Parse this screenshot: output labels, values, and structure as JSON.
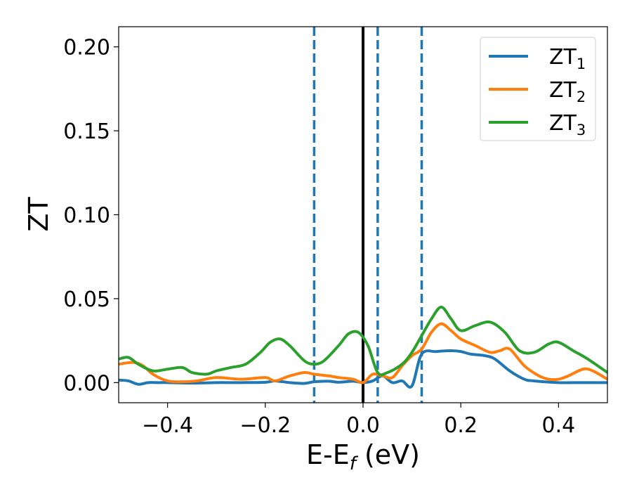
{
  "chart_data": {
    "type": "line",
    "xlabel": "E-E",
    "xlabel_sub": "f",
    "xlabel_unit": " (eV)",
    "ylabel": "ZT",
    "xlim": [
      -0.5,
      0.5
    ],
    "ylim": [
      -0.012,
      0.212
    ],
    "xticks": [
      -0.4,
      -0.2,
      0.0,
      0.2,
      0.4
    ],
    "xtick_labels": [
      "−0.4",
      "−0.2",
      "0.0",
      "0.2",
      "0.4"
    ],
    "yticks": [
      0.0,
      0.05,
      0.1,
      0.15,
      0.2
    ],
    "ytick_labels": [
      "0.00",
      "0.05",
      "0.10",
      "0.15",
      "0.20"
    ],
    "grid": false,
    "legend_position": "top-right",
    "vlines": [
      {
        "x": 0.0,
        "style": "solid",
        "color": "#000000"
      },
      {
        "x": -0.1,
        "style": "dashed",
        "color": "#1f77b4"
      },
      {
        "x": 0.03,
        "style": "dashed",
        "color": "#1f77b4"
      },
      {
        "x": 0.12,
        "style": "dashed",
        "color": "#1f77b4"
      }
    ],
    "series": [
      {
        "name": "ZT",
        "name_sub": "1",
        "color": "#1f77b4",
        "x": [
          -0.5,
          -0.48,
          -0.46,
          -0.44,
          -0.42,
          -0.4,
          -0.35,
          -0.3,
          -0.25,
          -0.2,
          -0.18,
          -0.15,
          -0.12,
          -0.1,
          -0.07,
          -0.05,
          -0.02,
          0.0,
          0.02,
          0.04,
          0.06,
          0.08,
          0.1,
          0.12,
          0.15,
          0.18,
          0.2,
          0.22,
          0.25,
          0.27,
          0.3,
          0.33,
          0.35,
          0.4,
          0.45,
          0.5
        ],
        "y": [
          0.0015,
          0.001,
          -0.001,
          0.0,
          0.0,
          0.0,
          -0.0003,
          0.0,
          0.0,
          0.0002,
          0.001,
          0.0,
          -0.0005,
          0.0005,
          0.0008,
          0.0002,
          0.0008,
          0.0,
          0.001,
          0.004,
          0.0,
          0.001,
          -0.002,
          0.017,
          0.0185,
          0.019,
          0.0185,
          0.017,
          0.016,
          0.014,
          0.007,
          0.002,
          0.001,
          0.0,
          0.0,
          0.0
        ]
      },
      {
        "name": "ZT",
        "name_sub": "2",
        "color": "#ff7f0e",
        "x": [
          -0.5,
          -0.47,
          -0.45,
          -0.43,
          -0.4,
          -0.37,
          -0.34,
          -0.3,
          -0.25,
          -0.2,
          -0.18,
          -0.15,
          -0.12,
          -0.1,
          -0.07,
          -0.05,
          -0.02,
          0.0,
          0.02,
          0.04,
          0.06,
          0.08,
          0.1,
          0.12,
          0.14,
          0.16,
          0.18,
          0.2,
          0.23,
          0.26,
          0.28,
          0.3,
          0.33,
          0.36,
          0.38,
          0.4,
          0.42,
          0.45,
          0.47,
          0.5
        ],
        "y": [
          0.011,
          0.012,
          0.01,
          0.005,
          0.001,
          0.0005,
          0.001,
          0.003,
          0.002,
          0.003,
          0.001,
          0.004,
          0.006,
          0.005,
          0.004,
          0.003,
          0.002,
          0.0,
          0.005,
          0.004,
          0.003,
          0.01,
          0.016,
          0.02,
          0.03,
          0.035,
          0.031,
          0.026,
          0.022,
          0.018,
          0.019,
          0.02,
          0.01,
          0.004,
          0.002,
          0.002,
          0.004,
          0.008,
          0.007,
          0.002
        ]
      },
      {
        "name": "ZT",
        "name_sub": "3",
        "color": "#2ca02c",
        "x": [
          -0.5,
          -0.48,
          -0.46,
          -0.43,
          -0.4,
          -0.37,
          -0.35,
          -0.32,
          -0.3,
          -0.27,
          -0.24,
          -0.21,
          -0.19,
          -0.17,
          -0.15,
          -0.12,
          -0.1,
          -0.08,
          -0.05,
          -0.03,
          -0.01,
          0.01,
          0.03,
          0.05,
          0.08,
          0.1,
          0.12,
          0.14,
          0.16,
          0.18,
          0.2,
          0.23,
          0.26,
          0.29,
          0.32,
          0.35,
          0.38,
          0.4,
          0.43,
          0.46,
          0.5
        ],
        "y": [
          0.014,
          0.015,
          0.011,
          0.007,
          0.008,
          0.009,
          0.006,
          0.005,
          0.007,
          0.009,
          0.011,
          0.018,
          0.024,
          0.026,
          0.022,
          0.013,
          0.011,
          0.013,
          0.022,
          0.029,
          0.03,
          0.022,
          0.006,
          0.006,
          0.011,
          0.018,
          0.028,
          0.038,
          0.045,
          0.038,
          0.031,
          0.034,
          0.036,
          0.03,
          0.019,
          0.018,
          0.023,
          0.024,
          0.019,
          0.014,
          0.006
        ]
      }
    ]
  }
}
